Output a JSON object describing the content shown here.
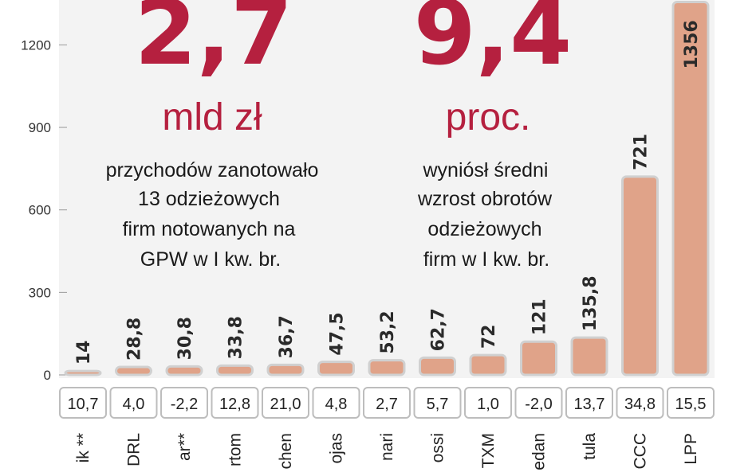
{
  "chart_data": {
    "type": "bar",
    "categories": [
      "ik **",
      "DRL",
      "ar**",
      "rtom",
      "chen",
      "ojas",
      "nari",
      "ossi",
      "TXM",
      "edan",
      "tula",
      "CCC",
      "LPP"
    ],
    "values": [
      14,
      28.8,
      30.8,
      33.8,
      36.7,
      47.5,
      53.2,
      62.7,
      72,
      121,
      135.8,
      721,
      1356
    ],
    "value_labels": [
      "14",
      "28,8",
      "30,8",
      "33,8",
      "36,7",
      "47,5",
      "53,2",
      "62,7",
      "72",
      "121",
      "135,8",
      "721",
      "1356"
    ],
    "growth_labels": [
      "10,7",
      "4,0",
      "-2,2",
      "12,8",
      "21,0",
      "4,8",
      "2,7",
      "5,7",
      "1,0",
      "-2,0",
      "13,7",
      "34,8",
      "15,5"
    ],
    "growth_values": [
      10.7,
      4.0,
      -2.2,
      12.8,
      21.0,
      4.8,
      2.7,
      5.7,
      1.0,
      -2.0,
      13.7,
      34.8,
      15.5
    ],
    "ylim": [
      0,
      1356
    ],
    "yticks": [
      0,
      300,
      600,
      900,
      1200
    ],
    "ytick_labels": [
      "0",
      "300",
      "600",
      "900",
      "1200"
    ],
    "grid": false,
    "colors": {
      "bar_fill": "#e0a389",
      "bar_stroke": "#d0d0d0",
      "accent": "#b5203f"
    }
  },
  "annotations": {
    "left": {
      "big_number": "2,7",
      "unit": "mld zł",
      "lines": [
        "przychodów zanotowało",
        "13 odzieżowych",
        "firm notowanych na",
        "GPW w I kw. br."
      ]
    },
    "right": {
      "big_number": "9,4",
      "unit": "proc.",
      "lines": [
        "wyniósł średni",
        "wzrost obrotów",
        "odzieżowych",
        "firm w I kw. br."
      ]
    }
  }
}
